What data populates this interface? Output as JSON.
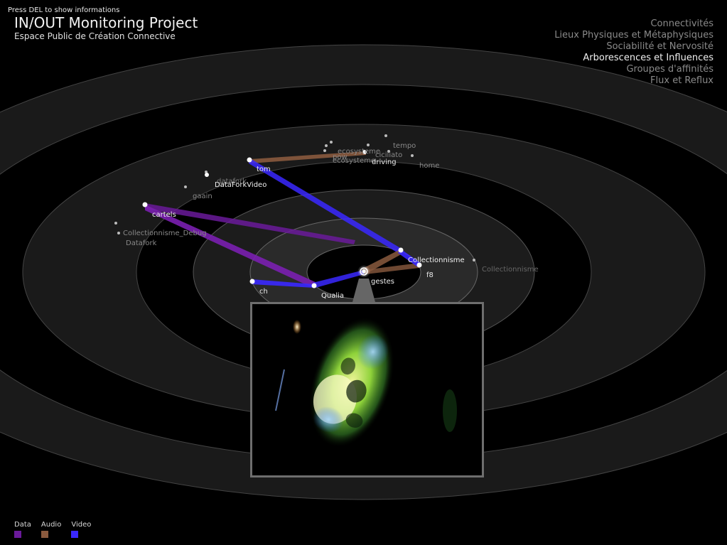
{
  "hint": "Press DEL to show informations",
  "title": "IN/OUT Monitoring Project",
  "subtitle": "Espace Public de Création Connective",
  "menu": [
    {
      "label": "Connectivités",
      "active": false
    },
    {
      "label": "Lieux Physiques et Métaphysiques",
      "active": false
    },
    {
      "label": "Sociabilité et Nervosité",
      "active": false
    },
    {
      "label": "Arborescences et Influences",
      "active": true
    },
    {
      "label": "Groupes d'affinités",
      "active": false
    },
    {
      "label": "Flux et Reflux",
      "active": false
    }
  ],
  "nodes": {
    "tom": "tom",
    "datafork_video": "DataForkVideo",
    "gaain": "gaain",
    "cartels": "cartels",
    "collectionnisme_debug": "Collectionnisme_Debug",
    "datafork": "Datafork",
    "collectionnisme": "Collectionnisme",
    "collectionnisme_far": "Collectionnisme",
    "f8": "f8",
    "gestes": "gestes",
    "qualia": "Qualia",
    "ch": "ch",
    "ecosysteme": "ecosysteme",
    "pow": "pow",
    "tempo": "tempo",
    "ciciliato": "ciciliato",
    "ecosysteme_b": "ecosysteme",
    "driving": "driving",
    "home": "home",
    "datafork_ghost": "datafork"
  },
  "legend": [
    {
      "label": "Data",
      "color": "#6a1a9a"
    },
    {
      "label": "Audio",
      "color": "#8a5a3e"
    },
    {
      "label": "Video",
      "color": "#3a28ff"
    }
  ],
  "colors": {
    "data": "#7a1fb0",
    "audio": "#8a5a3e",
    "video": "#3a28ff",
    "ring": "#2a2a2a",
    "ring_line": "#555555"
  }
}
